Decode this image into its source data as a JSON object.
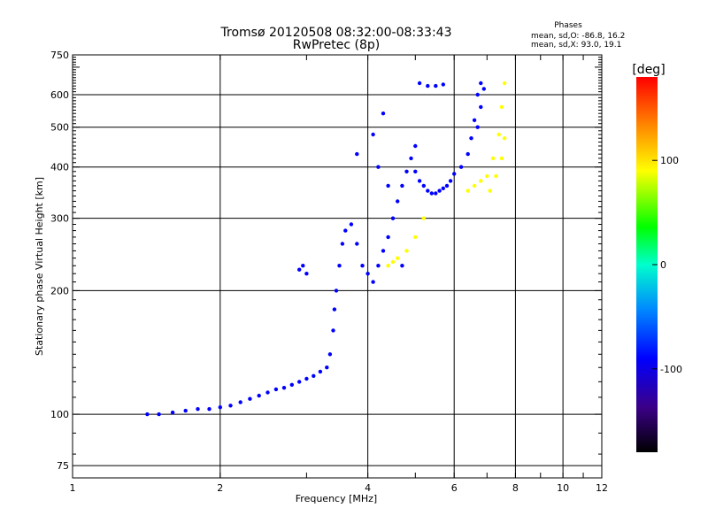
{
  "chart_data": {
    "type": "scatter",
    "title": "Tromsø 20120508 08:32:00-08:33:43",
    "subtitle": "RwPretec (8p)",
    "xlabel": "Frequency [MHz]",
    "ylabel": "Stationary phase Virtual Height [km]",
    "x_scale": "log",
    "y_scale": "log",
    "xlim": [
      1,
      12
    ],
    "ylim": [
      70,
      750
    ],
    "x_ticks": [
      1,
      2,
      4,
      6,
      8,
      10,
      12
    ],
    "y_ticks": [
      75,
      100,
      200,
      300,
      400,
      500,
      600,
      750
    ],
    "grid": true,
    "phase_stats": {
      "heading": "Phases",
      "o_line": "mean, sd,O: -86.8, 16.2",
      "x_line": "mean, sd,X:  93.0, 19.1"
    },
    "colorbar": {
      "label": "[deg]",
      "range": [
        -180,
        180
      ],
      "ticks": [
        100,
        0,
        -100
      ]
    },
    "series": [
      {
        "name": "",
        "color_note": "phase ~ -90 deg (blue)",
        "phase": -90,
        "points": [
          [
            1.42,
            100
          ],
          [
            1.5,
            100
          ],
          [
            1.6,
            101
          ],
          [
            1.7,
            102
          ],
          [
            1.8,
            103
          ],
          [
            1.9,
            103
          ],
          [
            2.0,
            104
          ],
          [
            2.1,
            105
          ],
          [
            2.2,
            107
          ],
          [
            2.3,
            109
          ],
          [
            2.4,
            111
          ],
          [
            2.5,
            113
          ],
          [
            2.6,
            115
          ],
          [
            2.7,
            116
          ],
          [
            2.8,
            118
          ],
          [
            2.9,
            120
          ],
          [
            3.0,
            122
          ],
          [
            3.1,
            124
          ],
          [
            3.2,
            127
          ],
          [
            3.3,
            130
          ],
          [
            3.35,
            140
          ],
          [
            3.4,
            160
          ],
          [
            3.42,
            180
          ],
          [
            3.45,
            200
          ],
          [
            3.5,
            230
          ],
          [
            3.55,
            260
          ],
          [
            3.6,
            280
          ],
          [
            3.7,
            290
          ],
          [
            3.8,
            260
          ],
          [
            3.9,
            230
          ],
          [
            4.0,
            220
          ],
          [
            4.1,
            210
          ],
          [
            4.2,
            230
          ],
          [
            4.3,
            250
          ],
          [
            4.4,
            270
          ],
          [
            4.5,
            300
          ],
          [
            4.6,
            330
          ],
          [
            4.7,
            360
          ],
          [
            4.8,
            390
          ],
          [
            4.9,
            420
          ],
          [
            5.0,
            450
          ],
          [
            5.0,
            390
          ],
          [
            5.1,
            370
          ],
          [
            5.2,
            360
          ],
          [
            5.3,
            350
          ],
          [
            5.4,
            345
          ],
          [
            5.5,
            345
          ],
          [
            5.6,
            350
          ],
          [
            5.7,
            355
          ],
          [
            5.8,
            360
          ],
          [
            5.9,
            370
          ],
          [
            6.0,
            385
          ],
          [
            6.2,
            400
          ],
          [
            6.4,
            430
          ],
          [
            6.5,
            470
          ],
          [
            6.6,
            520
          ],
          [
            6.7,
            600
          ],
          [
            6.8,
            640
          ],
          [
            6.9,
            620
          ],
          [
            6.8,
            560
          ],
          [
            6.7,
            500
          ],
          [
            4.7,
            230
          ],
          [
            4.4,
            360
          ],
          [
            4.2,
            400
          ],
          [
            4.1,
            480
          ],
          [
            4.3,
            540
          ],
          [
            3.8,
            430
          ],
          [
            3.0,
            220
          ],
          [
            2.95,
            230
          ],
          [
            2.9,
            225
          ],
          [
            5.1,
            640
          ],
          [
            5.3,
            630
          ],
          [
            5.5,
            630
          ],
          [
            5.7,
            635
          ]
        ]
      },
      {
        "name": "",
        "color_note": "phase ~ +90 deg (yellow-orange)",
        "phase": 90,
        "points": [
          [
            4.4,
            230
          ],
          [
            4.5,
            235
          ],
          [
            4.6,
            240
          ],
          [
            4.8,
            250
          ],
          [
            5.0,
            270
          ],
          [
            5.2,
            300
          ],
          [
            6.4,
            350
          ],
          [
            6.6,
            360
          ],
          [
            6.8,
            370
          ],
          [
            7.0,
            380
          ],
          [
            7.2,
            420
          ],
          [
            7.4,
            480
          ],
          [
            7.5,
            560
          ],
          [
            7.6,
            640
          ],
          [
            7.1,
            350
          ],
          [
            7.3,
            380
          ],
          [
            7.5,
            420
          ],
          [
            7.6,
            470
          ]
        ]
      }
    ]
  }
}
